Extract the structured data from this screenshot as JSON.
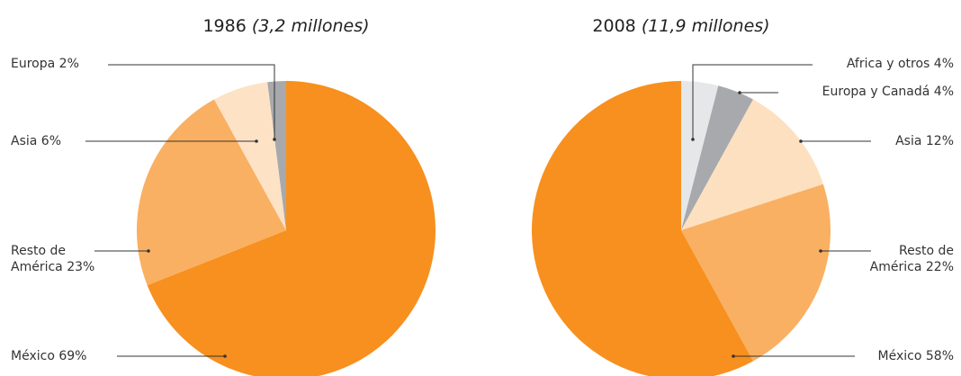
{
  "chart_data": [
    {
      "type": "pie",
      "title": "1986",
      "subtitle": "(3,2 millones)",
      "categories": [
        "México",
        "Resto de América",
        "Asia",
        "Europa"
      ],
      "values": [
        69,
        23,
        6,
        2
      ],
      "value_labels": [
        "69%",
        "23%",
        "6%",
        "2%"
      ],
      "colors": [
        "#f7901e",
        "#f9b062",
        "#fde2c6",
        "#a7a9ac"
      ]
    },
    {
      "type": "pie",
      "title": "2008",
      "subtitle": "(11,9 millones)",
      "categories": [
        "Africa y otros",
        "Europa y Canadá",
        "Asia",
        "Resto de América",
        "México"
      ],
      "values": [
        4,
        4,
        12,
        22,
        58
      ],
      "value_labels": [
        "4%",
        "4%",
        "12%",
        "22%",
        "58%"
      ],
      "colors": [
        "#e6e7e8",
        "#a7a9ac",
        "#fde0c0",
        "#f9b062",
        "#f7901e"
      ]
    }
  ]
}
